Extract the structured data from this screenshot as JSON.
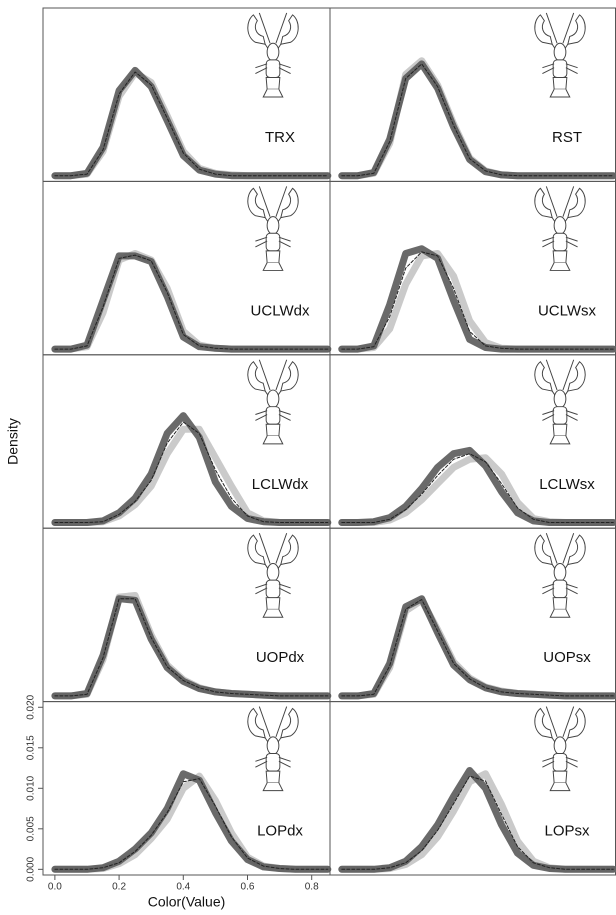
{
  "chart_data": [
    {
      "type": "line",
      "title": "TRX",
      "x": [
        0,
        0.05,
        0.1,
        0.15,
        0.2,
        0.25,
        0.3,
        0.35,
        0.4,
        0.45,
        0.5,
        0.55,
        0.6,
        0.65,
        0.7,
        0.75,
        0.8,
        0.85
      ],
      "xlim": [
        -0.037,
        0.857
      ],
      "ylim": [
        -0.0007,
        0.0207
      ],
      "series": [
        {
          "color": "#c4c4c4",
          "values": [
            0,
            0,
            0.0002,
            0.003,
            0.0098,
            0.0127,
            0.0115,
            0.0074,
            0.003,
            0.0009,
            0.0003,
            0.0001,
            0,
            0,
            0,
            0,
            0,
            0
          ]
        },
        {
          "color": "#5a5a5a",
          "values": [
            0,
            0,
            0.0003,
            0.0035,
            0.0105,
            0.013,
            0.011,
            0.0068,
            0.0025,
            0.0007,
            0.0002,
            0,
            0,
            0,
            0,
            0,
            0,
            0
          ]
        },
        {
          "color": "#222222",
          "dashed": true,
          "values": [
            0,
            0,
            0.0002,
            0.0032,
            0.0101,
            0.0128,
            0.0112,
            0.0071,
            0.0028,
            0.0008,
            0.0002,
            0,
            0,
            0,
            0,
            0,
            0,
            0
          ]
        }
      ]
    },
    {
      "type": "line",
      "title": "RST",
      "x": [
        0,
        0.05,
        0.1,
        0.15,
        0.2,
        0.25,
        0.3,
        0.35,
        0.4,
        0.45,
        0.5,
        0.55,
        0.6,
        0.65,
        0.7,
        0.75,
        0.8,
        0.85
      ],
      "xlim": [
        -0.037,
        0.857
      ],
      "ylim": [
        -0.0007,
        0.0207
      ],
      "series": [
        {
          "color": "#c4c4c4",
          "values": [
            0,
            0,
            0.0003,
            0.004,
            0.0125,
            0.0142,
            0.0112,
            0.0064,
            0.0022,
            0.0006,
            0.0001,
            0,
            0,
            0,
            0,
            0,
            0,
            0
          ]
        },
        {
          "color": "#5a5a5a",
          "values": [
            0,
            0,
            0.0004,
            0.0045,
            0.012,
            0.0138,
            0.0108,
            0.006,
            0.002,
            0.0005,
            0.0001,
            0,
            0,
            0,
            0,
            0,
            0,
            0
          ]
        },
        {
          "color": "#222222",
          "dashed": true,
          "values": [
            0,
            0,
            0.0003,
            0.0042,
            0.012,
            0.0138,
            0.011,
            0.0062,
            0.0021,
            0.0006,
            0.0001,
            0,
            0,
            0,
            0,
            0,
            0,
            0
          ]
        }
      ]
    },
    {
      "type": "line",
      "title": "UCLWdx",
      "x": [
        0,
        0.05,
        0.1,
        0.15,
        0.2,
        0.25,
        0.3,
        0.35,
        0.4,
        0.45,
        0.5,
        0.55,
        0.6,
        0.65,
        0.7,
        0.75,
        0.8,
        0.85
      ],
      "xlim": [
        -0.037,
        0.857
      ],
      "ylim": [
        -0.0007,
        0.0207
      ],
      "series": [
        {
          "color": "#c4c4c4",
          "values": [
            0,
            0,
            0.0003,
            0.0045,
            0.011,
            0.0118,
            0.011,
            0.0075,
            0.0022,
            0.0005,
            0.0001,
            0,
            0,
            0,
            0,
            0,
            0,
            0
          ]
        },
        {
          "color": "#5a5a5a",
          "values": [
            0,
            0,
            0.0005,
            0.006,
            0.0115,
            0.0115,
            0.0108,
            0.0065,
            0.0015,
            0.0003,
            0.0001,
            0,
            0,
            0,
            0,
            0,
            0,
            0
          ]
        },
        {
          "color": "#222222",
          "dashed": true,
          "values": [
            0,
            0,
            0.0004,
            0.0052,
            0.0112,
            0.0116,
            0.0109,
            0.007,
            0.0018,
            0.0004,
            0.0001,
            0,
            0,
            0,
            0,
            0,
            0,
            0
          ]
        }
      ]
    },
    {
      "type": "line",
      "title": "UCLWsx",
      "x": [
        0,
        0.05,
        0.1,
        0.15,
        0.2,
        0.25,
        0.3,
        0.35,
        0.4,
        0.45,
        0.5,
        0.55,
        0.6,
        0.65,
        0.7,
        0.75,
        0.8,
        0.85
      ],
      "xlim": [
        -0.037,
        0.857
      ],
      "ylim": [
        -0.0007,
        0.0207
      ],
      "series": [
        {
          "color": "#c4c4c4",
          "values": [
            0,
            0,
            0.0002,
            0.0025,
            0.008,
            0.0115,
            0.0118,
            0.009,
            0.0035,
            0.0008,
            0.0001,
            0,
            0,
            0,
            0,
            0,
            0,
            0
          ]
        },
        {
          "color": "#5a5a5a",
          "values": [
            0,
            0,
            0.0004,
            0.0055,
            0.0118,
            0.0124,
            0.0112,
            0.006,
            0.0012,
            0.0002,
            0,
            0,
            0,
            0,
            0,
            0,
            0,
            0
          ]
        },
        {
          "color": "#222222",
          "dashed": true,
          "values": [
            0,
            0,
            0.0003,
            0.004,
            0.01,
            0.012,
            0.0115,
            0.0075,
            0.0022,
            0.0004,
            0.0001,
            0,
            0,
            0,
            0,
            0,
            0,
            0
          ]
        }
      ]
    },
    {
      "type": "line",
      "title": "LCLWdx",
      "x": [
        0,
        0.05,
        0.1,
        0.15,
        0.2,
        0.25,
        0.3,
        0.35,
        0.4,
        0.45,
        0.5,
        0.55,
        0.6,
        0.65,
        0.7,
        0.75,
        0.8,
        0.85
      ],
      "xlim": [
        -0.037,
        0.857
      ],
      "ylim": [
        -0.0007,
        0.0207
      ],
      "series": [
        {
          "color": "#c4c4c4",
          "values": [
            0,
            0,
            0,
            0.0001,
            0.0008,
            0.0022,
            0.0045,
            0.0085,
            0.0115,
            0.0115,
            0.008,
            0.0045,
            0.0012,
            0.0002,
            0,
            0,
            0,
            0
          ]
        },
        {
          "color": "#5a5a5a",
          "values": [
            0,
            0,
            0,
            0.0002,
            0.0012,
            0.003,
            0.006,
            0.011,
            0.0132,
            0.0105,
            0.005,
            0.002,
            0.0005,
            0.0001,
            0,
            0,
            0,
            0
          ]
        },
        {
          "color": "#222222",
          "dashed": true,
          "values": [
            0,
            0,
            0,
            0.0001,
            0.001,
            0.0026,
            0.0052,
            0.0098,
            0.0124,
            0.011,
            0.0065,
            0.003,
            0.0008,
            0.0001,
            0,
            0,
            0,
            0
          ]
        }
      ]
    },
    {
      "type": "line",
      "title": "LCLWsx",
      "x": [
        0,
        0.05,
        0.1,
        0.15,
        0.2,
        0.25,
        0.3,
        0.35,
        0.4,
        0.45,
        0.5,
        0.55,
        0.6,
        0.65,
        0.7,
        0.75,
        0.8,
        0.85
      ],
      "xlim": [
        -0.037,
        0.857
      ],
      "ylim": [
        -0.0007,
        0.0207
      ],
      "series": [
        {
          "color": "#c4c4c4",
          "values": [
            0,
            0,
            0,
            0.0003,
            0.0012,
            0.0028,
            0.0048,
            0.0068,
            0.0078,
            0.008,
            0.006,
            0.0025,
            0.0005,
            0.0001,
            0,
            0,
            0,
            0
          ]
        },
        {
          "color": "#5a5a5a",
          "values": [
            0,
            0,
            0.0001,
            0.0006,
            0.002,
            0.0042,
            0.0068,
            0.0085,
            0.0089,
            0.007,
            0.0038,
            0.0012,
            0.0002,
            0,
            0,
            0,
            0,
            0
          ]
        },
        {
          "color": "#222222",
          "dashed": true,
          "values": [
            0,
            0,
            0,
            0.0004,
            0.0016,
            0.0035,
            0.0058,
            0.0078,
            0.0085,
            0.0075,
            0.0048,
            0.0018,
            0.0004,
            0,
            0,
            0,
            0,
            0
          ]
        }
      ]
    },
    {
      "type": "line",
      "title": "UOPdx",
      "x": [
        0,
        0.05,
        0.1,
        0.15,
        0.2,
        0.25,
        0.3,
        0.35,
        0.4,
        0.45,
        0.5,
        0.55,
        0.6,
        0.65,
        0.7,
        0.75,
        0.8,
        0.85
      ],
      "xlim": [
        -0.037,
        0.857
      ],
      "ylim": [
        -0.0007,
        0.0207
      ],
      "series": [
        {
          "color": "#c4c4c4",
          "values": [
            0,
            0,
            0.0002,
            0.0045,
            0.0122,
            0.0124,
            0.0075,
            0.0038,
            0.002,
            0.001,
            0.0005,
            0.0003,
            0.0002,
            0.0001,
            0,
            0,
            0,
            0
          ]
        },
        {
          "color": "#5a5a5a",
          "values": [
            0,
            0,
            0.0003,
            0.005,
            0.012,
            0.0118,
            0.007,
            0.0035,
            0.0018,
            0.0009,
            0.0005,
            0.0003,
            0.0002,
            0.0001,
            0,
            0,
            0,
            0
          ]
        },
        {
          "color": "#222222",
          "dashed": true,
          "values": [
            0,
            0,
            0.0002,
            0.0047,
            0.012,
            0.012,
            0.0072,
            0.0036,
            0.0019,
            0.001,
            0.0005,
            0.0003,
            0.0002,
            0.0001,
            0,
            0,
            0,
            0
          ]
        }
      ]
    },
    {
      "type": "line",
      "title": "UOPsx",
      "x": [
        0,
        0.05,
        0.1,
        0.15,
        0.2,
        0.25,
        0.3,
        0.35,
        0.4,
        0.45,
        0.5,
        0.55,
        0.6,
        0.65,
        0.7,
        0.75,
        0.8,
        0.85
      ],
      "xlim": [
        -0.037,
        0.857
      ],
      "ylim": [
        -0.0007,
        0.0207
      ],
      "series": [
        {
          "color": "#c4c4c4",
          "values": [
            0,
            0,
            0.0002,
            0.0035,
            0.0105,
            0.0118,
            0.0082,
            0.0042,
            0.0022,
            0.0011,
            0.0006,
            0.0003,
            0.0002,
            0.0001,
            0,
            0,
            0,
            0
          ]
        },
        {
          "color": "#5a5a5a",
          "values": [
            0,
            0,
            0.0003,
            0.004,
            0.011,
            0.012,
            0.0078,
            0.0038,
            0.002,
            0.001,
            0.0005,
            0.0003,
            0.0002,
            0.0001,
            0,
            0,
            0,
            0
          ]
        },
        {
          "color": "#222222",
          "dashed": true,
          "values": [
            0,
            0,
            0.0002,
            0.0037,
            0.0107,
            0.0119,
            0.008,
            0.004,
            0.0021,
            0.001,
            0.0005,
            0.0003,
            0.0002,
            0.0001,
            0,
            0,
            0,
            0
          ]
        }
      ]
    },
    {
      "type": "line",
      "title": "LOPdx",
      "x": [
        0,
        0.05,
        0.1,
        0.15,
        0.2,
        0.25,
        0.3,
        0.35,
        0.4,
        0.45,
        0.5,
        0.55,
        0.6,
        0.65,
        0.7,
        0.75,
        0.8,
        0.85
      ],
      "xlim": [
        -0.037,
        0.857
      ],
      "ylim": [
        -0.0007,
        0.0207
      ],
      "xlabel": "Color(Value)",
      "ylabel": "Density",
      "xticks": [
        {
          "value": 0,
          "label": "0.0"
        },
        0.2,
        0.4,
        0.6,
        0.8
      ],
      "yticks": [
        {
          "value": 0,
          "label": "0.000"
        },
        0.005,
        {
          "value": 0.01,
          "label": "0.010"
        },
        0.015,
        {
          "value": 0.02,
          "label": "0.020"
        }
      ],
      "series": [
        {
          "color": "#c4c4c4",
          "values": [
            0,
            0,
            0,
            0.0001,
            0.0007,
            0.0018,
            0.0038,
            0.0062,
            0.01,
            0.0115,
            0.0085,
            0.0045,
            0.0015,
            0.0004,
            0.0001,
            0,
            0,
            0
          ]
        },
        {
          "color": "#5a5a5a",
          "values": [
            0,
            0,
            0,
            0.0002,
            0.001,
            0.0025,
            0.0045,
            0.0075,
            0.0118,
            0.011,
            0.007,
            0.0035,
            0.0012,
            0.0003,
            0.0001,
            0,
            0,
            0
          ]
        },
        {
          "color": "#222222",
          "dashed": true,
          "values": [
            0,
            0,
            0,
            0.0002,
            0.0008,
            0.0022,
            0.0042,
            0.007,
            0.0108,
            0.0112,
            0.0078,
            0.004,
            0.0014,
            0.0004,
            0.0001,
            0,
            0,
            0
          ]
        }
      ]
    },
    {
      "type": "line",
      "title": "LOPsx",
      "x": [
        0,
        0.05,
        0.1,
        0.15,
        0.2,
        0.25,
        0.3,
        0.35,
        0.4,
        0.45,
        0.5,
        0.55,
        0.6,
        0.65,
        0.7,
        0.75,
        0.8,
        0.85
      ],
      "xlim": [
        -0.037,
        0.857
      ],
      "ylim": [
        -0.0007,
        0.0207
      ],
      "series": [
        {
          "color": "#c4c4c4",
          "values": [
            0,
            0,
            0,
            0.0001,
            0.0006,
            0.0018,
            0.004,
            0.0072,
            0.0108,
            0.0118,
            0.008,
            0.0035,
            0.001,
            0.0002,
            0,
            0,
            0,
            0
          ]
        },
        {
          "color": "#5a5a5a",
          "values": [
            0,
            0,
            0,
            0.0002,
            0.001,
            0.0028,
            0.0055,
            0.009,
            0.0122,
            0.01,
            0.0055,
            0.002,
            0.0005,
            0.0001,
            0,
            0,
            0,
            0
          ]
        },
        {
          "color": "#222222",
          "dashed": true,
          "values": [
            0,
            0,
            0,
            0.0002,
            0.0008,
            0.0023,
            0.0048,
            0.0081,
            0.0115,
            0.0109,
            0.0068,
            0.0028,
            0.0008,
            0.0002,
            0,
            0,
            0,
            0
          ]
        }
      ]
    }
  ]
}
